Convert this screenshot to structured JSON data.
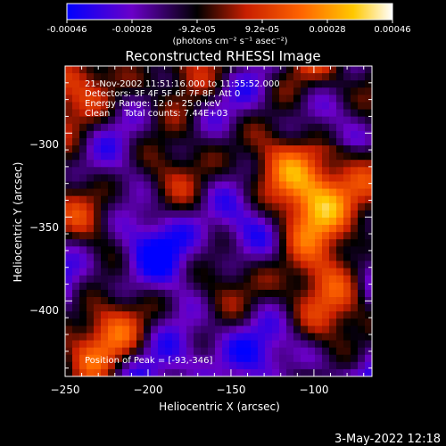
{
  "colorbar": {
    "tick_labels": [
      "-0.00046",
      "-0.00028",
      "-9.2e-05",
      "9.2e-05",
      "0.00028",
      "0.00046"
    ],
    "units_label": "(photons cm⁻² s⁻¹ asec⁻²)",
    "colors": [
      "#0000ff",
      "#6a00c8",
      "#000000",
      "#c81e00",
      "#ff6400",
      "#ffc800",
      "#ffffff"
    ]
  },
  "footer": {
    "timestamp": "3-May-2022 12:18"
  },
  "chart_data": {
    "type": "heatmap",
    "title": "Reconstructed RHESSI Image",
    "xlabel": "Heliocentric X (arcsec)",
    "ylabel": "Heliocentric Y (arcsec)",
    "xlim": [
      -250,
      -65
    ],
    "ylim": [
      -445,
      -260
    ],
    "xticks": [
      -250,
      -200,
      -150,
      -100
    ],
    "xtick_labels": [
      "−250",
      "−200",
      "−150",
      "−100"
    ],
    "yticks": [
      -300,
      -350,
      -400
    ],
    "ytick_labels": [
      "−300",
      "−350",
      "−400"
    ],
    "value_range": [
      -0.00046,
      0.00046
    ],
    "grid": false,
    "annotations": [
      "21-Nov-2002 11:51:16.000 to 11:55:52.000",
      "Detectors: 3F 4F 5F 6F 7F 8F, Att 0",
      "Energy Range: 12.0 - 25.0 keV",
      "Clean     Total counts: 7.44E+03"
    ],
    "peak_label": "Position of Peak = [-93,-346]",
    "peak_position": [
      -93,
      -346
    ]
  }
}
